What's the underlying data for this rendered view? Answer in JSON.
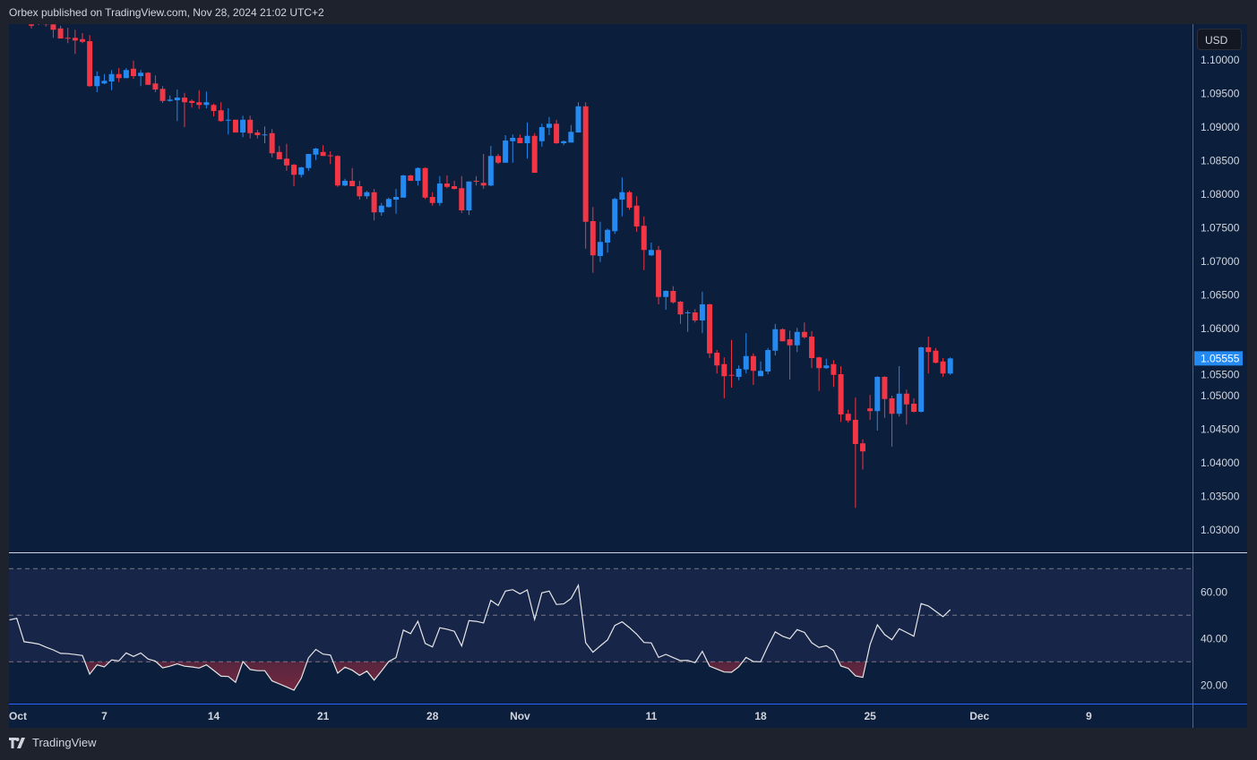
{
  "header": {
    "published": "Orbex published on TradingView.com, Nov 28, 2024 21:02 UTC+2"
  },
  "currency_button": "USD",
  "footer": {
    "brand": "TradingView",
    "logo_icon": "tradingview-logo-icon"
  },
  "colors": {
    "up": "#2489f0",
    "down": "#f23645",
    "background": "#0b1e3b",
    "frame": "#1e222d",
    "axis_line": "#2962ff",
    "rsi_line": "#e6e6e6",
    "rsi_band": "#172549",
    "last_price_bg": "#2489f0"
  },
  "chart_data": [
    {
      "type": "candlestick",
      "instrument_quote": "USD",
      "bars_per_day": 3,
      "ylim": [
        1.027,
        1.1056
      ],
      "y_ticks": [
        "1.10000",
        "1.09500",
        "1.09000",
        "1.08500",
        "1.08000",
        "1.07500",
        "1.07000",
        "1.06500",
        "1.06000",
        "1.05500",
        "1.05000",
        "1.04500",
        "1.04000",
        "1.03500",
        "1.03000"
      ],
      "last_price": "1.05555",
      "ohlc_columns": [
        "open",
        "high",
        "low",
        "close"
      ],
      "ohlc": [
        null,
        null,
        null,
        [
          1.1053,
          1.1055,
          1.1047,
          1.1051
        ],
        [
          1.1058,
          1.106,
          1.1052,
          1.1055
        ],
        [
          1.1055,
          1.1058,
          1.105,
          1.1053
        ],
        [
          1.1053,
          1.1056,
          1.1033,
          1.1045
        ],
        [
          1.1047,
          1.1051,
          1.1032,
          1.1032
        ],
        [
          1.1033,
          1.1048,
          1.1025,
          1.1032
        ],
        [
          1.1033,
          1.1045,
          1.1009,
          1.1029
        ],
        [
          1.1031,
          1.104,
          1.1025,
          1.1027
        ],
        [
          1.1028,
          1.1037,
          1.096,
          1.0961
        ],
        [
          1.0961,
          1.0983,
          1.0952,
          1.0976
        ],
        [
          1.0965,
          1.0979,
          1.0964,
          1.0969
        ],
        [
          1.0968,
          1.0985,
          1.0955,
          1.0979
        ],
        [
          1.0979,
          1.0988,
          1.0967,
          1.0973
        ],
        [
          1.0973,
          1.0988,
          1.0973,
          1.0985
        ],
        [
          1.0987,
          1.0999,
          1.0972,
          1.0976
        ],
        [
          1.0976,
          1.0985,
          1.0961,
          1.0981
        ],
        [
          1.0981,
          1.0982,
          1.0963,
          1.0963
        ],
        [
          1.0965,
          1.0977,
          1.0952,
          1.0956
        ],
        [
          1.0957,
          1.0961,
          1.0936,
          1.0939
        ],
        [
          1.0939,
          1.0947,
          1.0938,
          1.0941
        ],
        [
          1.094,
          1.0956,
          1.0909,
          1.0944
        ],
        [
          1.0944,
          1.0951,
          1.09,
          1.0937
        ],
        [
          1.0939,
          1.0941,
          1.0929,
          1.0936
        ],
        [
          1.0937,
          1.0955,
          1.0927,
          1.0933
        ],
        [
          1.0933,
          1.0953,
          1.0928,
          1.0937
        ],
        [
          1.0933,
          1.0935,
          1.0916,
          1.0924
        ],
        [
          1.0925,
          1.0937,
          1.0908,
          1.0909
        ],
        [
          1.091,
          1.0928,
          1.0889,
          1.0911
        ],
        [
          1.0911,
          1.0911,
          1.0892,
          1.0892
        ],
        [
          1.0892,
          1.0917,
          1.0885,
          1.0911
        ],
        [
          1.0911,
          1.0917,
          1.0883,
          1.0891
        ],
        [
          1.0892,
          1.0896,
          1.0883,
          1.0888
        ],
        [
          1.0888,
          1.0901,
          1.0876,
          1.0889
        ],
        [
          1.0891,
          1.0897,
          1.0855,
          1.0861
        ],
        [
          1.0863,
          1.0872,
          1.0852,
          1.0852
        ],
        [
          1.0853,
          1.0875,
          1.0835,
          1.0843
        ],
        [
          1.0844,
          1.0845,
          1.0812,
          1.0829
        ],
        [
          1.0829,
          1.0841,
          1.0825,
          1.084
        ],
        [
          1.0839,
          1.086,
          1.0835,
          1.086
        ],
        [
          1.0859,
          1.0869,
          1.0851,
          1.0868
        ],
        [
          1.0863,
          1.0873,
          1.0857,
          1.0857
        ],
        [
          1.0858,
          1.0864,
          1.0845,
          1.0857
        ],
        [
          1.0857,
          1.0858,
          1.0811,
          1.0813
        ],
        [
          1.0813,
          1.0823,
          1.0812,
          1.082
        ],
        [
          1.082,
          1.0839,
          1.0812,
          1.0812
        ],
        [
          1.0812,
          1.082,
          1.0792,
          1.0797
        ],
        [
          1.0797,
          1.0805,
          1.0793,
          1.0803
        ],
        [
          1.0803,
          1.0808,
          1.0761,
          1.0773
        ],
        [
          1.0773,
          1.0787,
          1.0768,
          1.0783
        ],
        [
          1.0781,
          1.0795,
          1.078,
          1.0793
        ],
        [
          1.0792,
          1.0808,
          1.0771,
          1.0796
        ],
        [
          1.0795,
          1.0829,
          1.0795,
          1.0828
        ],
        [
          1.0828,
          1.0829,
          1.082,
          1.082
        ],
        [
          1.082,
          1.084,
          1.0813,
          1.0839
        ],
        [
          1.0839,
          1.084,
          1.0793,
          1.0795
        ],
        [
          1.0796,
          1.0803,
          1.0783,
          1.0787
        ],
        [
          1.0787,
          1.0827,
          1.0783,
          1.0816
        ],
        [
          1.0816,
          1.0828,
          1.0809,
          1.0811
        ],
        [
          1.0812,
          1.082,
          1.0807,
          1.0808
        ],
        [
          1.0809,
          1.0827,
          1.0772,
          1.0776
        ],
        [
          1.0776,
          1.0819,
          1.0769,
          1.0819
        ],
        [
          1.082,
          1.0827,
          1.0813,
          1.0819
        ],
        [
          1.0817,
          1.086,
          1.0808,
          1.0813
        ],
        [
          1.0813,
          1.0872,
          1.0812,
          1.0857
        ],
        [
          1.0857,
          1.086,
          1.0845,
          1.0847
        ],
        [
          1.0847,
          1.0888,
          1.0847,
          1.088
        ],
        [
          1.0879,
          1.0889,
          1.0847,
          1.0884
        ],
        [
          1.0884,
          1.0889,
          1.0876,
          1.0876
        ],
        [
          1.0876,
          1.0907,
          1.0853,
          1.0887
        ],
        [
          1.0887,
          1.0891,
          1.0832,
          1.0832
        ],
        [
          1.0879,
          1.0905,
          1.0871,
          1.09
        ],
        [
          1.0899,
          1.0915,
          1.0888,
          1.0905
        ],
        [
          1.0905,
          1.0911,
          1.0875,
          1.0876
        ],
        [
          1.0876,
          1.088,
          1.0873,
          1.0879
        ],
        [
          1.0877,
          1.0903,
          1.0877,
          1.0893
        ],
        [
          1.0892,
          1.0937,
          1.0892,
          1.0931
        ],
        [
          1.0931,
          1.0937,
          1.0719,
          1.0759
        ],
        [
          1.076,
          1.0781,
          1.0683,
          1.0709
        ],
        [
          1.0708,
          1.0759,
          1.0699,
          1.0729
        ],
        [
          1.0728,
          1.0749,
          1.0713,
          1.0747
        ],
        [
          1.0745,
          1.0795,
          1.0741,
          1.0793
        ],
        [
          1.0792,
          1.0825,
          1.0767,
          1.0803
        ],
        [
          1.0803,
          1.0805,
          1.0777,
          1.078
        ],
        [
          1.0783,
          1.0797,
          1.0744,
          1.0752
        ],
        [
          1.0753,
          1.0767,
          1.0687,
          1.0717
        ],
        [
          1.0709,
          1.0728,
          1.0708,
          1.0717
        ],
        [
          1.0717,
          1.0723,
          1.0636,
          1.0647
        ],
        [
          1.0647,
          1.0657,
          1.0628,
          1.0656
        ],
        [
          1.0656,
          1.0663,
          1.0637,
          1.0639
        ],
        [
          1.064,
          1.0641,
          1.0607,
          1.0621
        ],
        [
          1.0623,
          1.0627,
          1.0595,
          1.0624
        ],
        [
          1.0624,
          1.0629,
          1.0609,
          1.0612
        ],
        [
          1.0612,
          1.0655,
          1.0593,
          1.0636
        ],
        [
          1.0636,
          1.0637,
          1.0556,
          1.0563
        ],
        [
          1.0564,
          1.0568,
          1.0533,
          1.0545
        ],
        [
          1.0547,
          1.0557,
          1.0496,
          1.0529
        ],
        [
          1.0531,
          1.0583,
          1.0512,
          1.053
        ],
        [
          1.0528,
          1.0545,
          1.0523,
          1.054
        ],
        [
          1.0539,
          1.0593,
          1.0533,
          1.0559
        ],
        [
          1.0559,
          1.0563,
          1.0516,
          1.0537
        ],
        [
          1.0529,
          1.0551,
          1.0529,
          1.0537
        ],
        [
          1.0536,
          1.0571,
          1.0532,
          1.0568
        ],
        [
          1.0567,
          1.0607,
          1.056,
          1.0599
        ],
        [
          1.0599,
          1.06,
          1.0581,
          1.0581
        ],
        [
          1.0584,
          1.0597,
          1.0524,
          1.0575
        ],
        [
          1.0575,
          1.0601,
          1.0565,
          1.0595
        ],
        [
          1.0595,
          1.0609,
          1.0585,
          1.0587
        ],
        [
          1.0588,
          1.0596,
          1.0541,
          1.0556
        ],
        [
          1.0557,
          1.0558,
          1.0507,
          1.0541
        ],
        [
          1.0541,
          1.0555,
          1.054,
          1.0545
        ],
        [
          1.0547,
          1.0553,
          1.0513,
          1.0531
        ],
        [
          1.0532,
          1.0544,
          1.0461,
          1.0472
        ],
        [
          1.0473,
          1.0479,
          1.046,
          1.0463
        ],
        [
          1.0464,
          1.0497,
          1.0333,
          1.0428
        ],
        [
          1.0429,
          1.0435,
          1.039,
          1.0417
        ],
        [
          1.0481,
          1.0501,
          1.0464,
          1.0477
        ],
        [
          1.0477,
          1.0529,
          1.0448,
          1.0528
        ],
        [
          1.0528,
          1.0529,
          1.0467,
          1.0495
        ],
        [
          1.0496,
          1.05,
          1.0424,
          1.0473
        ],
        [
          1.0473,
          1.0544,
          1.0469,
          1.0503
        ],
        [
          1.0503,
          1.0509,
          1.0457,
          1.0487
        ],
        [
          1.0488,
          1.0496,
          1.0475,
          1.0476
        ],
        [
          1.0476,
          1.0573,
          1.0475,
          1.0572
        ],
        [
          1.0572,
          1.0588,
          1.0533,
          1.0565
        ],
        [
          1.0567,
          1.0571,
          1.0548,
          1.0549
        ],
        [
          1.0551,
          1.0556,
          1.0528,
          1.0533
        ],
        [
          1.0533,
          1.0557,
          1.0531,
          1.05555
        ]
      ]
    },
    {
      "type": "line",
      "indicator": "RSI",
      "ylim": [
        14,
        76
      ],
      "y_ticks": [
        "60.00",
        "40.00",
        "20.00"
      ],
      "levels": [
        70,
        50,
        30
      ],
      "oversold_fill_below": 30,
      "values": [
        48.0,
        48.7,
        38.6,
        38.2,
        37.6,
        36.3,
        35.1,
        33.6,
        33.5,
        33.1,
        32.7,
        24.7,
        28.7,
        27.8,
        30.8,
        30.4,
        33.8,
        32.3,
        33.8,
        31.2,
        30.3,
        27.4,
        28.1,
        29.1,
        28.1,
        27.8,
        27.3,
        28.7,
        26.3,
        23.8,
        23.7,
        21.2,
        30.1,
        26.7,
        26.2,
        26.2,
        21.8,
        20.5,
        19.2,
        17.8,
        22.9,
        31.7,
        35.3,
        33.3,
        32.9,
        25.1,
        27.7,
        26.4,
        24.2,
        26.0,
        22.1,
        26.0,
        30.1,
        31.8,
        43.6,
        42.1,
        47.4,
        37.9,
        36.4,
        44.6,
        44.0,
        43.1,
        36.8,
        47.7,
        47.4,
        46.7,
        56.4,
        54.2,
        60.4,
        61.0,
        59.2,
        60.9,
        48.2,
        59.6,
        60.4,
        54.6,
        54.9,
        57.2,
        62.9,
        38.2,
        34.1,
        36.8,
        39.4,
        45.6,
        47.2,
        44.7,
        41.9,
        38.3,
        38.1,
        31.9,
        33.2,
        31.8,
        30.5,
        30.6,
        29.6,
        34.5,
        28.1,
        26.9,
        25.6,
        25.5,
        27.9,
        31.9,
        30.1,
        30.0,
        36.8,
        42.9,
        41.0,
        39.9,
        43.8,
        42.6,
        38.2,
        36.2,
        36.9,
        34.9,
        28.2,
        27.2,
        24.0,
        23.3,
        37.4,
        45.9,
        41.7,
        39.5,
        44.2,
        42.6,
        41.0,
        55.0,
        54.0,
        51.7,
        49.4,
        52.4
      ]
    },
    {
      "type": "time_axis",
      "ticks": [
        {
          "label": "Oct",
          "date": "2024-10-01"
        },
        {
          "label": "7",
          "date": "2024-10-07"
        },
        {
          "label": "14",
          "date": "2024-10-14"
        },
        {
          "label": "21",
          "date": "2024-10-21"
        },
        {
          "label": "28",
          "date": "2024-10-28"
        },
        {
          "label": "Nov",
          "date": "2024-11-01"
        },
        {
          "label": "11",
          "date": "2024-11-11"
        },
        {
          "label": "18",
          "date": "2024-11-18"
        },
        {
          "label": "25",
          "date": "2024-11-25"
        },
        {
          "label": "Dec",
          "date": "2024-12-02"
        },
        {
          "label": "9",
          "date": "2024-12-09"
        }
      ]
    }
  ]
}
